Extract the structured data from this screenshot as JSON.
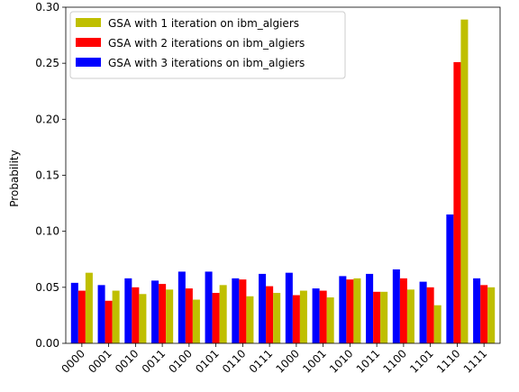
{
  "chart_data": {
    "type": "bar",
    "title": "",
    "xlabel": "",
    "ylabel": "Probability",
    "ylim": [
      0,
      0.3
    ],
    "yticks": [
      "0.00",
      "0.05",
      "0.10",
      "0.15",
      "0.20",
      "0.25",
      "0.30"
    ],
    "grid": false,
    "legend_position": "top-left",
    "categories": [
      "0000",
      "0001",
      "0010",
      "0011",
      "0100",
      "0101",
      "0110",
      "0111",
      "1000",
      "1001",
      "1010",
      "1011",
      "1100",
      "1101",
      "1110",
      "1111"
    ],
    "series": [
      {
        "name": "GSA with 3 iterations on ibm_algiers",
        "color": "#0000ff",
        "values": [
          0.054,
          0.052,
          0.058,
          0.056,
          0.064,
          0.064,
          0.058,
          0.062,
          0.063,
          0.049,
          0.06,
          0.062,
          0.066,
          0.055,
          0.115,
          0.058
        ]
      },
      {
        "name": "GSA with 2 iterations on ibm_algiers",
        "color": "#ff0000",
        "values": [
          0.047,
          0.038,
          0.05,
          0.053,
          0.049,
          0.045,
          0.057,
          0.051,
          0.043,
          0.047,
          0.057,
          0.046,
          0.058,
          0.05,
          0.251,
          0.052
        ]
      },
      {
        "name": "GSA with 1 iteration on ibm_algiers",
        "color": "#bfbf00",
        "values": [
          0.063,
          0.047,
          0.044,
          0.048,
          0.039,
          0.052,
          0.042,
          0.045,
          0.047,
          0.041,
          0.058,
          0.046,
          0.048,
          0.034,
          0.289,
          0.05
        ]
      }
    ],
    "legend_order": [
      2,
      1,
      0
    ]
  }
}
